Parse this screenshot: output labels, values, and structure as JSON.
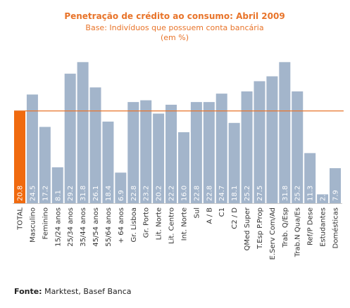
{
  "chart_data": {
    "type": "bar",
    "title": "Penetração de crédito ao consumo: Abril 2009",
    "subtitle": "Base: Indivíduos que possuem conta bancária",
    "unit_note": "(em %)",
    "categories": [
      "TOTAL",
      "Masculino",
      "Feminino",
      "15/24 anos",
      "25/34 anos",
      "35/44 anos",
      "45/54 anos",
      "55/64 anos",
      "+ 64 anos",
      "Gr. Lisboa",
      "Gr. Porto",
      "Lit. Norte",
      "Lit. Centro",
      "Int. Norte",
      "Sul",
      "A / B",
      "C1",
      "C2 / D",
      "QMed Super",
      "T.Esp P.Prop",
      "E.Serv Com/Ad",
      "Trab. Q/Esp",
      "Trab.N Qua/Es",
      "Ref/P Dese",
      "Estudantes",
      "Domésticas"
    ],
    "values": [
      20.8,
      24.5,
      17.2,
      8.1,
      29.2,
      31.8,
      26.1,
      18.4,
      6.9,
      22.8,
      23.2,
      20.2,
      22.2,
      16.0,
      22.8,
      22.8,
      24.7,
      18.1,
      25.2,
      27.5,
      28.6,
      31.8,
      25.2,
      11.3,
      2.0,
      7.9
    ],
    "value_labels": [
      "20.8",
      "24.5",
      "17.2",
      "8.1",
      "29.2",
      "31.8",
      "26.1",
      "18.4",
      "6.9",
      "22.8",
      "23.2",
      "20.2",
      "22.2",
      "16.0",
      "22.8",
      "22.8",
      "24.7",
      "18.1",
      "25.2",
      "27.5",
      "",
      "31.8",
      "25.2",
      "11.3",
      "2.0",
      "7.9"
    ],
    "reference_line": 20.8,
    "ylim": [
      0,
      36
    ],
    "grid": false,
    "legend": "none",
    "colors": {
      "total_bar": "#f06a0f",
      "bar": "#a3b5cb",
      "reference_line": "#e8742a",
      "title": "#e8742a",
      "axis": "#c8c8c8"
    }
  },
  "source": {
    "label": "Fonte:",
    "text": " Marktest, Basef Banca"
  }
}
